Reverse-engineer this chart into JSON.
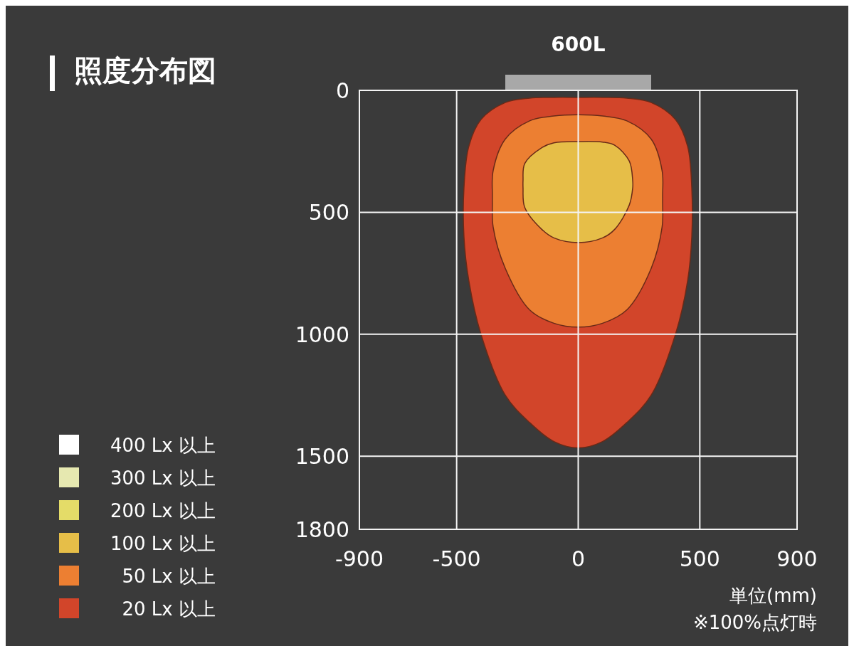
{
  "chart_data": {
    "type": "area",
    "title": "照度分布図",
    "annotations": [
      "600L",
      "単位(mm)",
      "※100%点灯時"
    ],
    "xlim": [
      -900,
      900
    ],
    "xticks": [
      -900,
      -500,
      0,
      500,
      900
    ],
    "ylim": [
      1800,
      0
    ],
    "yticks": [
      0,
      500,
      1000,
      1500,
      1800
    ],
    "grid": true,
    "legend": "left",
    "series": [
      {
        "name": "400 Lx 以上",
        "color": "#ffffff"
      },
      {
        "name": "300 Lx 以上",
        "color": "#e6e8b0"
      },
      {
        "name": "200 Lx 以上",
        "color": "#e4dc68"
      },
      {
        "name": "100 Lx 以上",
        "color": "#e6be48",
        "x": [
          -227,
          -220,
          -150,
          -100,
          0,
          100,
          150,
          210,
          224,
          224,
          210,
          150,
          100,
          0,
          -100,
          -150,
          -220,
          -227
        ],
        "values": [
          370,
          300,
          235,
          215,
          210,
          212,
          225,
          290,
          370,
          400,
          470,
          570,
          605,
          624,
          605,
          570,
          480,
          400
        ]
      },
      {
        "name": "50 Lx 以上",
        "color": "#ec7f32",
        "x": [
          -353,
          -350,
          -300,
          -200,
          -100,
          0,
          100,
          200,
          300,
          345,
          347,
          347,
          345,
          300,
          200,
          100,
          0,
          -100,
          -200,
          -300,
          -350,
          -353
        ],
        "values": [
          430,
          330,
          200,
          125,
          105,
          100,
          105,
          125,
          200,
          330,
          430,
          460,
          560,
          730,
          900,
          955,
          971,
          955,
          900,
          730,
          560,
          460
        ]
      },
      {
        "name": "20 Lx 以上",
        "color": "#d2452a",
        "x": [
          -470,
          -450,
          -400,
          -300,
          -200,
          -100,
          0,
          100,
          200,
          300,
          400,
          450,
          467,
          467,
          450,
          400,
          300,
          200,
          100,
          0,
          -100,
          -200,
          -300,
          -400,
          -450,
          -470
        ],
        "values": [
          400,
          230,
          120,
          50,
          32,
          29,
          29,
          29,
          32,
          50,
          120,
          230,
          400,
          600,
          780,
          1000,
          1250,
          1362,
          1440,
          1466,
          1440,
          1362,
          1250,
          1000,
          780,
          600
        ]
      }
    ]
  }
}
